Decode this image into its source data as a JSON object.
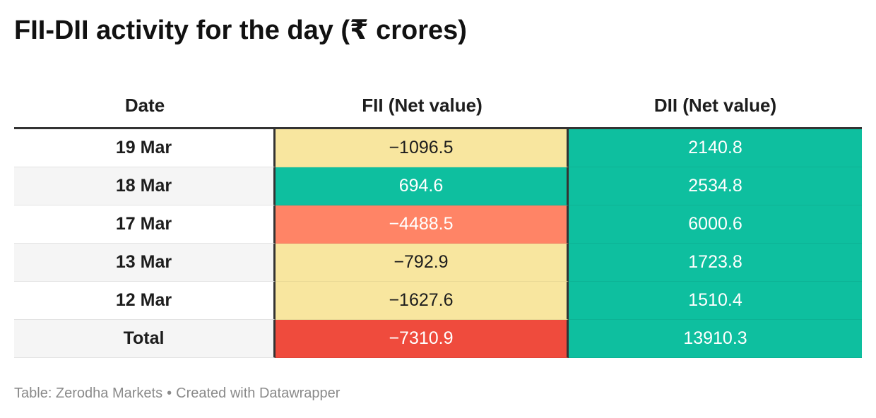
{
  "title": "FII-DII activity for the day (₹ crores)",
  "footer": {
    "source": "Table: Zerodha Markets",
    "separator": "•",
    "credit": "Created with Datawrapper"
  },
  "colors": {
    "positive": "#0ebf9f",
    "mild_negative": "#f8e69f",
    "strong_negative": "#ff8466",
    "total_negative": "#ef4b3d",
    "row_alt": "#f5f5f5",
    "row_plain": "#ffffff"
  },
  "chart_data": {
    "type": "table",
    "title": "FII-DII activity for the day (₹ crores)",
    "columns": [
      "Date",
      "FII (Net value)",
      "DII (Net value)"
    ],
    "rows": [
      {
        "date": "19 Mar",
        "fii": "−1096.5",
        "dii": "2140.8",
        "fii_value": -1096.5,
        "dii_value": 2140.8
      },
      {
        "date": "18 Mar",
        "fii": "694.6",
        "dii": "2534.8",
        "fii_value": 694.6,
        "dii_value": 2534.8
      },
      {
        "date": "17 Mar",
        "fii": "−4488.5",
        "dii": "6000.6",
        "fii_value": -4488.5,
        "dii_value": 6000.6
      },
      {
        "date": "13 Mar",
        "fii": "−792.9",
        "dii": "1723.8",
        "fii_value": -792.9,
        "dii_value": 1723.8
      },
      {
        "date": "12 Mar",
        "fii": "−1627.6",
        "dii": "1510.4",
        "fii_value": -1627.6,
        "dii_value": 1510.4
      },
      {
        "date": "Total",
        "fii": "−7310.9",
        "dii": "13910.3",
        "fii_value": -7310.9,
        "dii_value": 13910.3
      }
    ]
  }
}
